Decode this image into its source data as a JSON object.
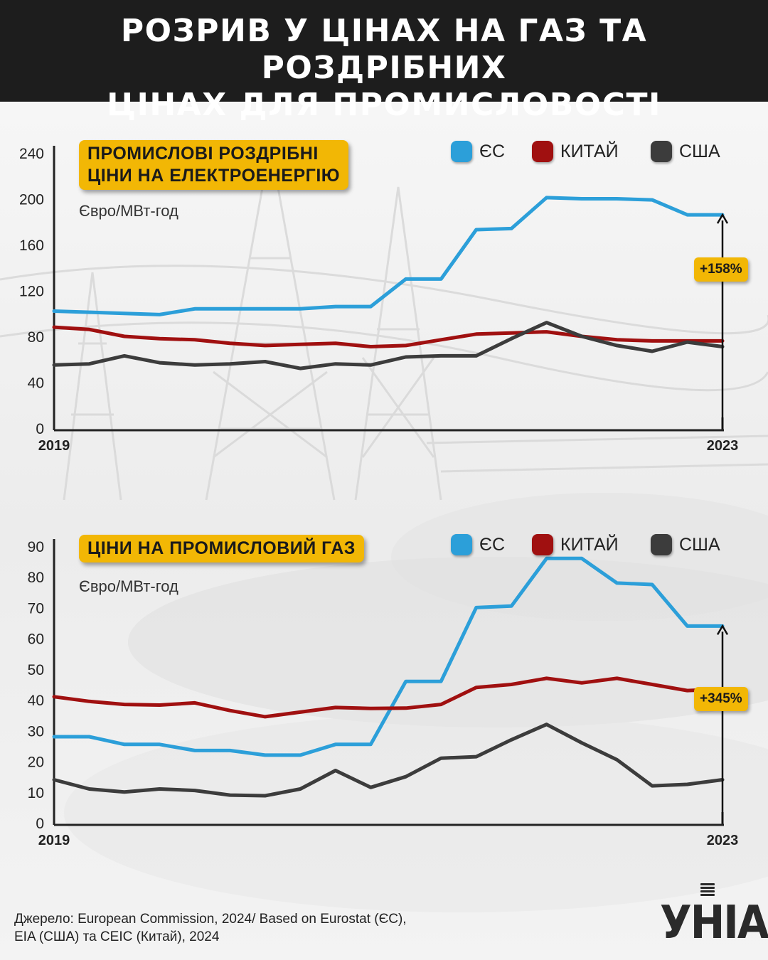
{
  "header": {
    "title_line1": "РОЗРИВ У ЦІНАХ НА ГАЗ ТА РОЗДРІБНИХ",
    "title_line2": "ЦІНАХ ДЛЯ ПРОМИСЛОВОСТІ"
  },
  "colors": {
    "eu": "#2c9fd9",
    "china": "#a01010",
    "usa": "#3c3c3c",
    "accent": "#f2b705",
    "header_bg": "#1d1d1d"
  },
  "legend": {
    "eu": "ЄС",
    "china": "КИТАЙ",
    "usa": "США"
  },
  "chart_data": [
    {
      "type": "line",
      "title": "ПРОМИСЛОВІ РОЗДРІБНІ ЦІНИ НА ЕЛЕКТРОЕНЕРГІЮ",
      "title_lines": [
        "ПРОМИСЛОВІ РОЗДРІБНІ",
        "ЦІНИ НА ЕЛЕКТРОЕНЕРГІЮ"
      ],
      "ylabel": "Євро/МВт-год",
      "ylim": [
        0,
        240
      ],
      "yticks": [
        0,
        40,
        80,
        120,
        160,
        200,
        240
      ],
      "x_start_label": "2019",
      "x_end_label": "2023",
      "x": [
        0,
        1,
        2,
        3,
        4,
        5,
        6,
        7,
        8,
        9,
        10,
        11,
        12,
        13,
        14,
        15,
        16,
        17,
        18,
        19
      ],
      "series": [
        {
          "name": "ЄС",
          "key": "eu",
          "values": [
            102,
            101,
            100,
            99,
            104,
            104,
            104,
            104,
            106,
            106,
            130,
            130,
            173,
            174,
            201,
            200,
            200,
            199,
            186,
            186
          ]
        },
        {
          "name": "КИТАЙ",
          "key": "china",
          "values": [
            88,
            86,
            80,
            78,
            77,
            74,
            72,
            73,
            74,
            71,
            72,
            77,
            82,
            83,
            84,
            80,
            77,
            76,
            76,
            76
          ]
        },
        {
          "name": "США",
          "key": "usa",
          "values": [
            55,
            56,
            63,
            57,
            55,
            56,
            58,
            52,
            56,
            55,
            62,
            63,
            63,
            78,
            92,
            80,
            72,
            67,
            75,
            71
          ]
        }
      ],
      "annotation": "+158%"
    },
    {
      "type": "line",
      "title": "ЦІНИ НА ПРОМИСЛОВИЙ ГАЗ",
      "title_lines": [
        "ЦІНИ НА ПРОМИСЛОВИЙ ГАЗ"
      ],
      "ylabel": "Євро/МВт-год",
      "ylim": [
        0,
        90
      ],
      "yticks": [
        0,
        10,
        20,
        30,
        40,
        50,
        60,
        70,
        80,
        90
      ],
      "x_start_label": "2019",
      "x_end_label": "2023",
      "x": [
        0,
        1,
        2,
        3,
        4,
        5,
        6,
        7,
        8,
        9,
        10,
        11,
        12,
        13,
        14,
        15,
        16,
        17,
        18,
        19
      ],
      "series": [
        {
          "name": "ЄС",
          "key": "eu",
          "values": [
            28,
            28,
            25.5,
            25.5,
            23.5,
            23.5,
            22,
            22,
            25.5,
            25.5,
            46,
            46,
            70,
            70.5,
            86,
            86,
            78,
            77.5,
            64,
            64
          ]
        },
        {
          "name": "КИТАЙ",
          "key": "china",
          "values": [
            41,
            39.5,
            38.5,
            38.3,
            39,
            36.5,
            34.5,
            36,
            37.5,
            37.2,
            37.3,
            38.5,
            44,
            45,
            47,
            45.5,
            47,
            45,
            43,
            43.5
          ]
        },
        {
          "name": "США",
          "key": "usa",
          "values": [
            14,
            11,
            10,
            11,
            10.5,
            9,
            8.8,
            11,
            17,
            11.5,
            15,
            21,
            21.5,
            27,
            32,
            26,
            20.5,
            12,
            12.5,
            14
          ]
        }
      ],
      "annotation": "+345%"
    }
  ],
  "source": {
    "line1": "Джерело: European Commission, 2024/ Based on Eurostat (ЄС),",
    "line2": "EIA (США) та CEIC (Китай), 2024"
  },
  "logo": {
    "text": "УНІАН"
  }
}
